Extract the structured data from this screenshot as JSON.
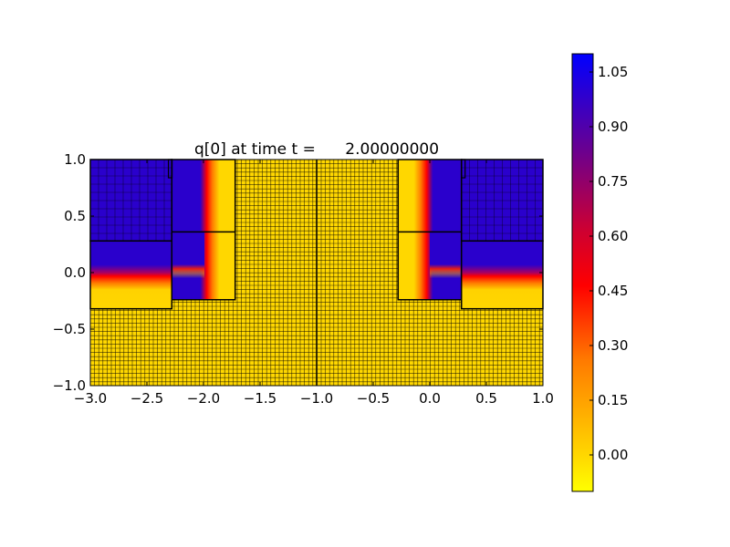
{
  "chart_data": {
    "type": "heatmap",
    "title": "q[0] at time t =      2.00000000",
    "xlabel": "",
    "ylabel": "",
    "xlim": [
      -3.0,
      1.0
    ],
    "ylim": [
      -1.0,
      1.0
    ],
    "xticks": [
      -3.0,
      -2.5,
      -2.0,
      -1.5,
      -1.0,
      -0.5,
      0.0,
      0.5,
      1.0
    ],
    "xtick_labels": [
      "−3.0",
      "−2.5",
      "−2.0",
      "−1.5",
      "−1.0",
      "−0.5",
      "0.0",
      "0.5",
      "1.0"
    ],
    "yticks": [
      1.0,
      0.5,
      0.0,
      -0.5,
      -1.0
    ],
    "ytick_labels": [
      "1.0",
      "0.5",
      "0.0",
      "−0.5",
      "−1.0"
    ],
    "colorbar": {
      "range": [
        -0.1,
        1.1
      ],
      "ticks": [
        1.05,
        0.9,
        0.75,
        0.6,
        0.45,
        0.3,
        0.15,
        0.0
      ],
      "tick_labels": [
        "1.05",
        "0.90",
        "0.75",
        "0.60",
        "0.45",
        "0.30",
        "0.15",
        "0.00"
      ],
      "colors": [
        "#ffff00",
        "#ffd700",
        "#ff8000",
        "#ff0000",
        "#cc0033",
        "#6600a0",
        "#0000ff"
      ]
    },
    "grid_patches": [
      {
        "x": [
          -3.0,
          -2.28
        ],
        "y": [
          0.28,
          1.0
        ],
        "value": 1.0
      },
      {
        "x": [
          -3.0,
          -2.28
        ],
        "y": [
          -0.32,
          0.28
        ],
        "value": "blue-to-gold transition"
      },
      {
        "x": [
          -2.28,
          -1.72
        ],
        "y": [
          -0.24,
          1.0
        ],
        "value": "L-shaped front"
      },
      {
        "x": [
          -1.0,
          -1.0
        ],
        "y": [
          -1.0,
          1.0
        ],
        "value": "patch boundary"
      },
      {
        "x": [
          -0.28,
          0.28
        ],
        "y": [
          -0.24,
          1.0
        ],
        "value": "L-shaped front"
      },
      {
        "x": [
          0.28,
          1.0
        ],
        "y": [
          0.28,
          1.0
        ],
        "value": 1.0
      },
      {
        "x": [
          0.28,
          1.0
        ],
        "y": [
          -0.32,
          0.28
        ],
        "value": "blue-to-gold transition"
      }
    ],
    "background_value": 0.0
  }
}
